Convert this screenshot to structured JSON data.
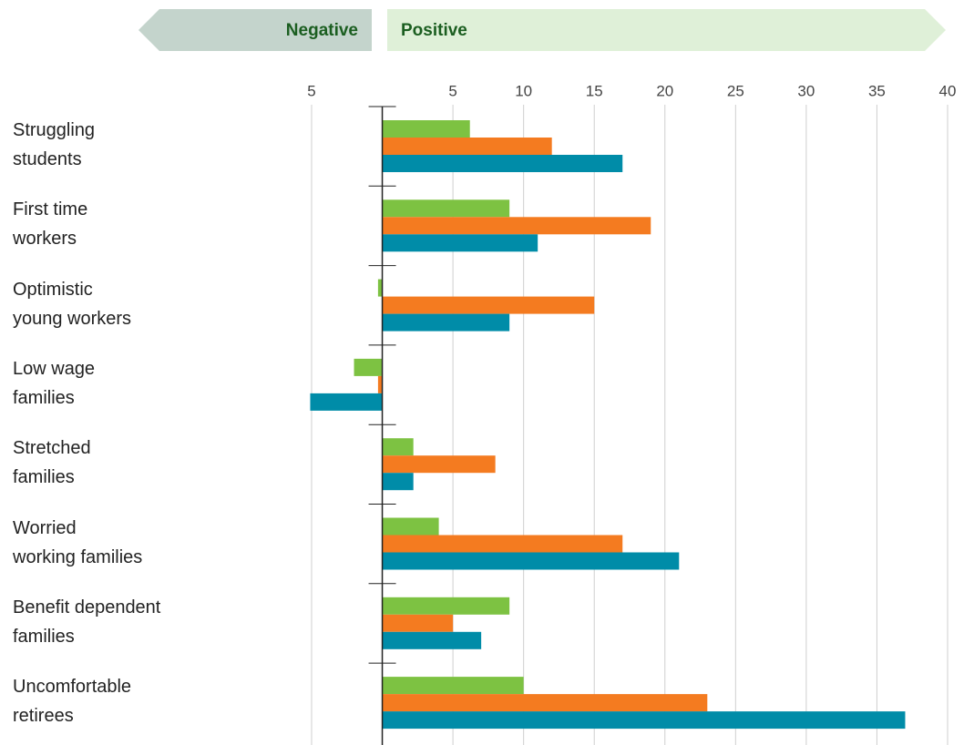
{
  "chart_data": {
    "type": "hbar",
    "negative_label": "Negative",
    "positive_label": "Positive",
    "categories": [
      "Struggling\nstudents",
      "First time\nworkers",
      "Optimistic\nyoung workers",
      "Low wage\nfamilies",
      "Stretched\nfamilies",
      "Worried\nworking families",
      "Benefit dependent\nfamilies",
      "Uncomfortable\nretirees"
    ],
    "series": [
      {
        "color": "#7dc242",
        "values": [
          6.2,
          9,
          -0.3,
          -2,
          2.2,
          4,
          9,
          10
        ]
      },
      {
        "color": "#f47b20",
        "values": [
          12,
          19,
          15,
          -0.3,
          8,
          17,
          5,
          23
        ]
      },
      {
        "color": "#008ca8",
        "values": [
          17,
          11,
          9,
          -5.1,
          2.2,
          21,
          7,
          37
        ]
      }
    ],
    "xlim": [
      -5,
      40
    ],
    "xticks": [
      {
        "value": -5,
        "label": "5"
      },
      5,
      10,
      15,
      20,
      25,
      30,
      35,
      40
    ],
    "grid": true
  }
}
